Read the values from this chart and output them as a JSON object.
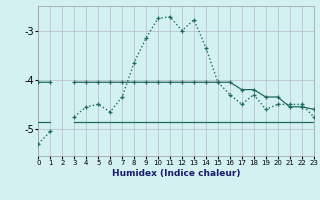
{
  "xlabel": "Humidex (Indice chaleur)",
  "x": [
    0,
    1,
    2,
    3,
    4,
    5,
    6,
    7,
    8,
    9,
    10,
    11,
    12,
    13,
    14,
    15,
    16,
    17,
    18,
    19,
    20,
    21,
    22,
    23
  ],
  "line_main": [
    -5.3,
    -5.05,
    null,
    -4.75,
    -4.55,
    -4.5,
    -4.65,
    -4.35,
    -3.65,
    -3.15,
    -2.75,
    -2.72,
    -3.0,
    -2.78,
    -3.35,
    -4.05,
    -4.3,
    -4.5,
    -4.3,
    -4.6,
    -4.5,
    -4.5,
    -4.5,
    -4.75
  ],
  "line_upper": [
    -4.05,
    -4.05,
    null,
    -4.05,
    -4.05,
    -4.05,
    -4.05,
    -4.05,
    -4.05,
    -4.05,
    -4.05,
    -4.05,
    -4.05,
    -4.05,
    -4.05,
    -4.05,
    -4.05,
    -4.2,
    -4.2,
    -4.35,
    -4.35,
    -4.55,
    -4.55,
    -4.6
  ],
  "line_lower": [
    -4.85,
    -4.85,
    null,
    -4.85,
    -4.85,
    -4.85,
    -4.85,
    -4.85,
    -4.85,
    -4.85,
    -4.85,
    -4.85,
    -4.85,
    -4.85,
    -4.85,
    -4.85,
    -4.85,
    -4.85,
    -4.85,
    -4.85,
    -4.85,
    -4.85,
    -4.85,
    -4.85
  ],
  "bg_color": "#d4f1f1",
  "grid_color": "#b8b8c8",
  "line_color": "#1e6b5e",
  "yticks": [
    -5,
    -4,
    -3
  ],
  "ylim": [
    -5.55,
    -2.5
  ],
  "xlim": [
    0,
    23
  ]
}
